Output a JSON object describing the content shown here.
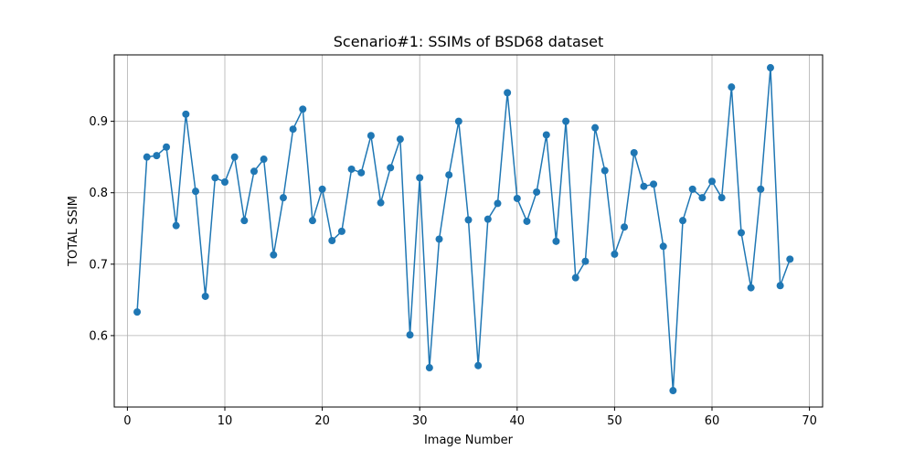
{
  "chart_data": {
    "type": "line",
    "title": "Scenario#1: SSIMs of BSD68 dataset",
    "xlabel": "Image Number",
    "ylabel": "TOTAL SSIM",
    "xlim": [
      -1.35,
      71.35
    ],
    "ylim": [
      0.5,
      0.993
    ],
    "xticks": [
      0,
      10,
      20,
      30,
      40,
      50,
      60,
      70
    ],
    "yticks": [
      0.6,
      0.7,
      0.8,
      0.9
    ],
    "xtick_labels": [
      "0",
      "10",
      "20",
      "30",
      "40",
      "50",
      "60",
      "70"
    ],
    "ytick_labels": [
      "0.6",
      "0.7",
      "0.8",
      "0.9"
    ],
    "grid": true,
    "marker": "circle",
    "color": "#1f77b4",
    "series": [
      {
        "x": [
          1,
          2,
          3,
          4,
          5,
          6,
          7,
          8,
          9,
          10,
          11,
          12,
          13,
          14,
          15,
          16,
          17,
          18,
          19,
          20,
          21,
          22,
          23,
          24,
          25,
          26,
          27,
          28,
          29,
          30,
          31,
          32,
          33,
          34,
          35,
          36,
          37,
          38,
          39,
          40,
          41,
          42,
          43,
          44,
          45,
          46,
          47,
          48,
          49,
          50,
          51,
          52,
          53,
          54,
          55,
          56,
          57,
          58,
          59,
          60,
          61,
          62,
          63,
          64,
          65,
          66,
          67,
          68
        ],
        "values": [
          0.633,
          0.85,
          0.852,
          0.864,
          0.754,
          0.91,
          0.802,
          0.655,
          0.821,
          0.815,
          0.85,
          0.761,
          0.83,
          0.847,
          0.713,
          0.793,
          0.889,
          0.917,
          0.761,
          0.805,
          0.733,
          0.746,
          0.833,
          0.828,
          0.88,
          0.786,
          0.835,
          0.875,
          0.601,
          0.821,
          0.555,
          0.735,
          0.825,
          0.9,
          0.762,
          0.558,
          0.763,
          0.785,
          0.94,
          0.792,
          0.76,
          0.801,
          0.881,
          0.732,
          0.9,
          0.681,
          0.704,
          0.891,
          0.831,
          0.714,
          0.752,
          0.856,
          0.809,
          0.812,
          0.725,
          0.523,
          0.761,
          0.805,
          0.793,
          0.816,
          0.793,
          0.948,
          0.744,
          0.667,
          0.805,
          0.975,
          0.67,
          0.707
        ]
      }
    ]
  }
}
